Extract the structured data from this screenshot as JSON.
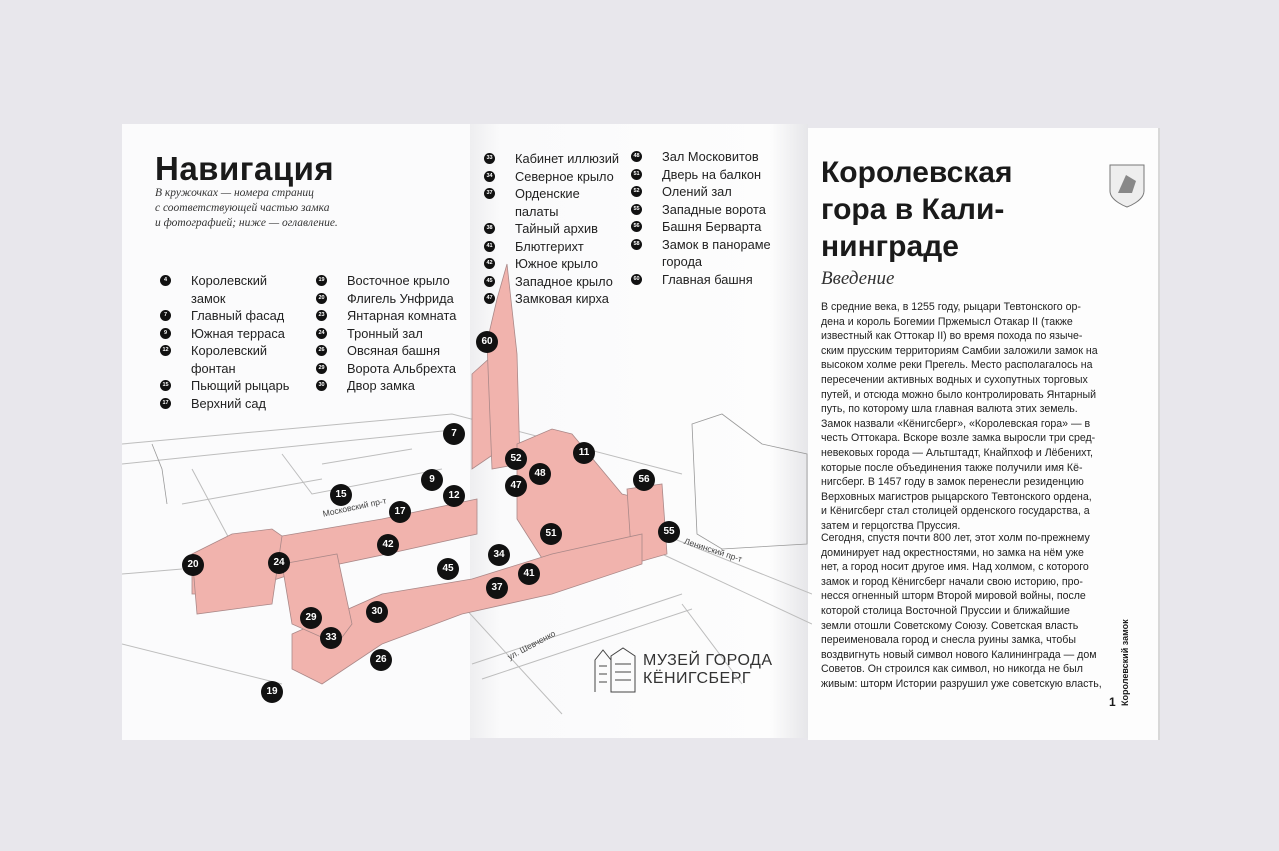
{
  "left_page": {
    "title": "Навигация",
    "subtitle_lines": [
      "В кружочках — номера страниц",
      "с соответствующей частью замка",
      "и фотографией; ниже — оглавление."
    ],
    "toc_col1": [
      {
        "n": "4",
        "lines": [
          "Королевский",
          "замок"
        ]
      },
      {
        "n": "7",
        "lines": [
          "Главный фасад"
        ]
      },
      {
        "n": "9",
        "lines": [
          "Южная терраса"
        ]
      },
      {
        "n": "12",
        "lines": [
          "Королевский",
          "фонтан"
        ]
      },
      {
        "n": "15",
        "lines": [
          "Пьющий рыцарь"
        ]
      },
      {
        "n": "17",
        "lines": [
          "Верхний сад"
        ]
      }
    ],
    "toc_col2": [
      {
        "n": "19",
        "lines": [
          "Восточное крыло"
        ]
      },
      {
        "n": "20",
        "lines": [
          "Флигель Унфрида"
        ]
      },
      {
        "n": "23",
        "lines": [
          "Янтарная комната"
        ]
      },
      {
        "n": "24",
        "lines": [
          "Тронный зал"
        ]
      },
      {
        "n": "26",
        "lines": [
          "Овсяная башня"
        ]
      },
      {
        "n": "29",
        "lines": [
          "Ворота Альбрехта"
        ]
      },
      {
        "n": "30",
        "lines": [
          "Двор замка"
        ]
      }
    ]
  },
  "middle_page": {
    "toc_col3": [
      {
        "n": "33",
        "lines": [
          "Кабинет иллюзий"
        ]
      },
      {
        "n": "34",
        "lines": [
          "Северное крыло"
        ]
      },
      {
        "n": "37",
        "lines": [
          "Орденские",
          "палаты"
        ]
      },
      {
        "n": "38",
        "lines": [
          "Тайный архив"
        ]
      },
      {
        "n": "41",
        "lines": [
          "Блютгерихт"
        ]
      },
      {
        "n": "42",
        "lines": [
          "Южное крыло"
        ]
      },
      {
        "n": "45",
        "lines": [
          "Западное крыло"
        ]
      },
      {
        "n": "47",
        "lines": [
          "Замковая кирха"
        ]
      }
    ],
    "toc_col4": [
      {
        "n": "48",
        "lines": [
          "Зал Московитов"
        ]
      },
      {
        "n": "51",
        "lines": [
          "Дверь на балкон"
        ]
      },
      {
        "n": "52",
        "lines": [
          "Олений зал"
        ]
      },
      {
        "n": "55",
        "lines": [
          "Западные ворота"
        ]
      },
      {
        "n": "56",
        "lines": [
          "Башня Берварта"
        ]
      },
      {
        "n": "58",
        "lines": [
          "Замок в панораме",
          "города"
        ]
      },
      {
        "n": "60",
        "lines": [
          "Главная башня"
        ]
      }
    ],
    "logo_lines": [
      "МУЗЕЙ ГОРОДА",
      "КЁНИГСБЕРГ"
    ]
  },
  "map": {
    "castle_color": "#f1b3ad",
    "streets": [
      "Московский пр-т",
      "Ленинский пр-т",
      "ул. Шевченко"
    ],
    "markers": [
      "60",
      "7",
      "11",
      "52",
      "48",
      "9",
      "47",
      "56",
      "15",
      "12",
      "17",
      "51",
      "55",
      "42",
      "34",
      "20",
      "24",
      "45",
      "41",
      "37",
      "30",
      "29",
      "33",
      "26",
      "19"
    ]
  },
  "right_page": {
    "title_lines": [
      "Королевская",
      "гора в Кали-",
      "нинграде"
    ],
    "intro": "Введение",
    "para1": [
      "В средние века, в 1255 году, рыцари Тевтонского ор-",
      "дена и король Богемии Пржемысл Отакар II (также",
      "известный как Оттокар II) во время похода по языче-",
      "ским прусским территориям Самбии заложили замок на",
      "высоком холме реки Прегель. Место располагалось на",
      "пересечении активных водных и сухопутных торговых",
      "путей, и отсюда можно было контролировать Янтарный",
      "путь, по которому шла главная валюта этих земель.",
      "Замок назвали «Кёнигсберг», «Королевская гора» — в",
      "честь Оттокара. Вскоре возле замка выросли три сред-",
      "невековых города — Альтштадт, Кнайпхоф и Лёбенихт,",
      "которые после объединения также получили имя Кё-",
      "нигсберг. В 1457 году в замок перенесли резиденцию",
      "Верховных магистров рыцарского Тевтонского ордена,",
      "и Кёнигсберг стал столицей орденского государства, а",
      "затем и герцогства Пруссия."
    ],
    "para2": [
      "Сегодня, спустя почти 800 лет, этот холм по-прежнему",
      "доминирует над окрестностями, но замка на нём уже",
      "нет, а город носит другое имя. Над холмом, с которого",
      "замок и город Кёнигсберг начали свою историю, про-",
      "несся огненный шторм Второй мировой войны, после",
      "которой столица Восточной Пруссии и ближайшие",
      "земли отошли Советскому Союзу. Советская власть",
      "переименовала город и снесла руины замка, чтобы",
      "воздвигнуть новый символ нового Калининграда — дом",
      "Советов. Он строился как символ, но никогда не был",
      "живым: шторм Истории разрушил уже советскую власть,"
    ],
    "page_number": "1",
    "running_head": "Королевский замок"
  }
}
